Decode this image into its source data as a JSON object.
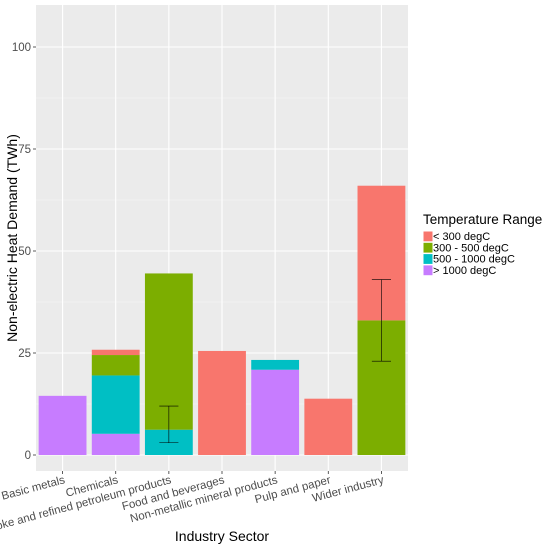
{
  "chart_data": {
    "type": "bar",
    "stacked": true,
    "xlabel": "Industry Sector",
    "ylabel": "Non-electric Heat Demand (TWh)",
    "ylim": [
      0,
      110
    ],
    "yticks": [
      0,
      25,
      50,
      75,
      100
    ],
    "grid": true,
    "legend_placement": "right",
    "legend_title": "Temperature Range",
    "categories": [
      "Basic metals",
      "Chemicals",
      "Coke and refined petroleum products",
      "Food and beverages",
      "Non-metallic mineral products",
      "Pulp and paper",
      "Wider industry"
    ],
    "series": [
      {
        "name": "< 300 degC",
        "color": "#F8766D",
        "values": [
          0,
          1.3,
          0,
          25.5,
          0,
          13.8,
          33.0
        ]
      },
      {
        "name": "300 - 500 degC",
        "color": "#7CAE00",
        "values": [
          0,
          5.0,
          38.3,
          0,
          0,
          0,
          33.0
        ]
      },
      {
        "name": "500 - 1000 degC",
        "color": "#00BFC4",
        "values": [
          0,
          14.3,
          6.2,
          0,
          2.4,
          0,
          0
        ]
      },
      {
        "name": "> 1000 degC",
        "color": "#C77CFF",
        "values": [
          14.5,
          5.2,
          0,
          0,
          20.9,
          0,
          0
        ]
      }
    ],
    "error_bars": [
      {
        "category": "Coke and refined petroleum products",
        "low": 3,
        "high": 12
      },
      {
        "category": "Wider industry",
        "low": 23,
        "high": 43
      }
    ]
  }
}
